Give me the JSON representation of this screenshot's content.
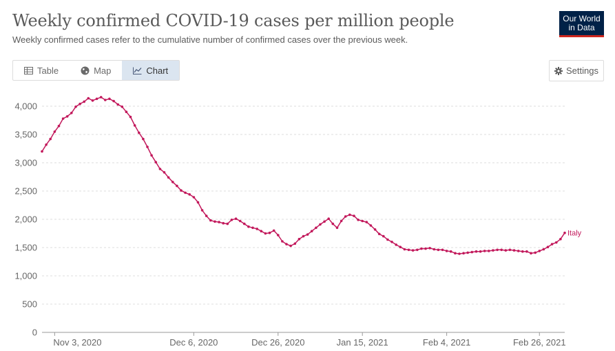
{
  "header": {
    "title": "Weekly confirmed COVID-19 cases per million people",
    "subtitle": "Weekly confirmed cases refer to the cumulative number of confirmed cases over the previous week."
  },
  "logo": {
    "line1": "Our World",
    "line2": "in Data"
  },
  "tabs": [
    {
      "label": "Table",
      "icon": "table-icon",
      "active": false
    },
    {
      "label": "Map",
      "icon": "globe-icon",
      "active": false
    },
    {
      "label": "Chart",
      "icon": "line-chart-icon",
      "active": true
    }
  ],
  "settings": {
    "label": "Settings",
    "icon": "gear-icon"
  },
  "colors": {
    "series": "#c2185b",
    "active_tab": "#dbe5f0",
    "logo_bg": "#002147",
    "logo_accent": "#ce261e"
  },
  "chart_data": {
    "type": "line",
    "title": "",
    "xlabel": "",
    "ylabel": "",
    "ylim": [
      0,
      4000
    ],
    "yticks": [
      0,
      500,
      1000,
      1500,
      2000,
      2500,
      3000,
      3500,
      4000
    ],
    "ytick_labels": [
      "0",
      "500",
      "1,000",
      "1,500",
      "2,000",
      "2,500",
      "3,000",
      "3,500",
      "4,000"
    ],
    "xlim": [
      "2020-10-31",
      "2021-03-04"
    ],
    "xticks": [
      {
        "date": "2020-11-03",
        "label": "Nov 3, 2020"
      },
      {
        "date": "2020-12-06",
        "label": "Dec 6, 2020"
      },
      {
        "date": "2020-12-26",
        "label": "Dec 26, 2020"
      },
      {
        "date": "2021-01-15",
        "label": "Jan 15, 2021"
      },
      {
        "date": "2021-02-04",
        "label": "Feb 4, 2021"
      },
      {
        "date": "2021-02-26",
        "label": "Feb 26, 2021"
      }
    ],
    "grid": true,
    "series": [
      {
        "name": "Italy",
        "color": "#c2185b",
        "x": [
          "2020-10-31",
          "2020-11-01",
          "2020-11-02",
          "2020-11-03",
          "2020-11-04",
          "2020-11-05",
          "2020-11-06",
          "2020-11-07",
          "2020-11-08",
          "2020-11-09",
          "2020-11-10",
          "2020-11-11",
          "2020-11-12",
          "2020-11-13",
          "2020-11-14",
          "2020-11-15",
          "2020-11-16",
          "2020-11-17",
          "2020-11-18",
          "2020-11-19",
          "2020-11-20",
          "2020-11-21",
          "2020-11-22",
          "2020-11-23",
          "2020-11-24",
          "2020-11-25",
          "2020-11-26",
          "2020-11-27",
          "2020-11-28",
          "2020-11-29",
          "2020-11-30",
          "2020-12-01",
          "2020-12-02",
          "2020-12-03",
          "2020-12-04",
          "2020-12-05",
          "2020-12-06",
          "2020-12-07",
          "2020-12-08",
          "2020-12-09",
          "2020-12-10",
          "2020-12-11",
          "2020-12-12",
          "2020-12-13",
          "2020-12-14",
          "2020-12-15",
          "2020-12-16",
          "2020-12-17",
          "2020-12-18",
          "2020-12-19",
          "2020-12-20",
          "2020-12-21",
          "2020-12-22",
          "2020-12-23",
          "2020-12-24",
          "2020-12-25",
          "2020-12-26",
          "2020-12-27",
          "2020-12-28",
          "2020-12-29",
          "2020-12-30",
          "2020-12-31",
          "2021-01-01",
          "2021-01-02",
          "2021-01-03",
          "2021-01-04",
          "2021-01-05",
          "2021-01-06",
          "2021-01-07",
          "2021-01-08",
          "2021-01-09",
          "2021-01-10",
          "2021-01-11",
          "2021-01-12",
          "2021-01-13",
          "2021-01-14",
          "2021-01-15",
          "2021-01-16",
          "2021-01-17",
          "2021-01-18",
          "2021-01-19",
          "2021-01-20",
          "2021-01-21",
          "2021-01-22",
          "2021-01-23",
          "2021-01-24",
          "2021-01-25",
          "2021-01-26",
          "2021-01-27",
          "2021-01-28",
          "2021-01-29",
          "2021-01-30",
          "2021-01-31",
          "2021-02-01",
          "2021-02-02",
          "2021-02-03",
          "2021-02-04",
          "2021-02-05",
          "2021-02-06",
          "2021-02-07",
          "2021-02-08",
          "2021-02-09",
          "2021-02-10",
          "2021-02-11",
          "2021-02-12",
          "2021-02-13",
          "2021-02-14",
          "2021-02-15",
          "2021-02-16",
          "2021-02-17",
          "2021-02-18",
          "2021-02-19",
          "2021-02-20",
          "2021-02-21",
          "2021-02-22",
          "2021-02-23",
          "2021-02-24",
          "2021-02-25",
          "2021-02-26",
          "2021-02-27",
          "2021-02-28",
          "2021-03-01",
          "2021-03-02",
          "2021-03-03",
          "2021-03-04"
        ],
        "values": [
          3200,
          3320,
          3420,
          3550,
          3650,
          3780,
          3820,
          3880,
          3990,
          4040,
          4080,
          4140,
          4100,
          4130,
          4160,
          4110,
          4130,
          4090,
          4030,
          3990,
          3900,
          3810,
          3660,
          3530,
          3420,
          3280,
          3130,
          3010,
          2890,
          2830,
          2740,
          2660,
          2590,
          2510,
          2470,
          2440,
          2390,
          2300,
          2160,
          2060,
          1980,
          1960,
          1950,
          1930,
          1920,
          1990,
          2010,
          1970,
          1920,
          1870,
          1850,
          1830,
          1790,
          1750,
          1760,
          1800,
          1720,
          1610,
          1560,
          1530,
          1570,
          1650,
          1700,
          1730,
          1790,
          1850,
          1910,
          1960,
          2010,
          1920,
          1850,
          1970,
          2050,
          2080,
          2060,
          1990,
          1970,
          1950,
          1890,
          1820,
          1740,
          1700,
          1640,
          1600,
          1550,
          1510,
          1470,
          1460,
          1450,
          1460,
          1480,
          1480,
          1490,
          1470,
          1460,
          1460,
          1440,
          1430,
          1400,
          1390,
          1400,
          1410,
          1420,
          1430,
          1430,
          1440,
          1440,
          1450,
          1460,
          1460,
          1450,
          1460,
          1450,
          1440,
          1430,
          1430,
          1400,
          1410,
          1440,
          1470,
          1510,
          1560,
          1590,
          1650,
          1760
        ]
      }
    ]
  }
}
